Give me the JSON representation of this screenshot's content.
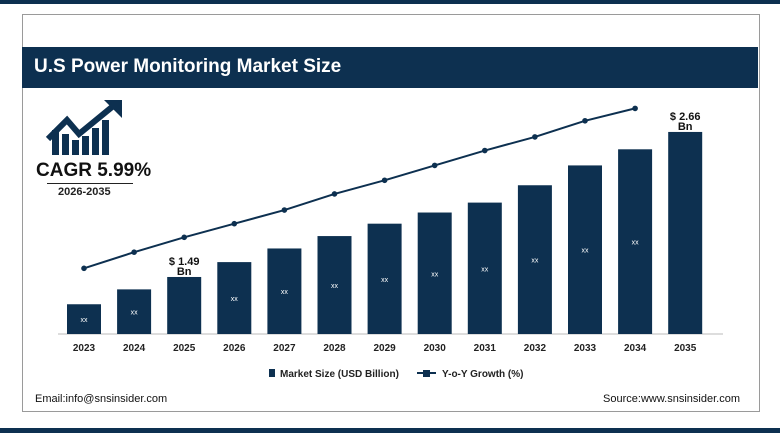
{
  "title": "U.S Power Monitoring Market Size",
  "cagr": {
    "label": "CAGR 5.99%",
    "period": "2026-2035",
    "icon": "growth-chart-arrow-icon"
  },
  "footer": {
    "email": "Email:info@snsinsider.com",
    "source": "Source:www.snsinsider.com"
  },
  "colors": {
    "primary": "#0d3050",
    "bar_label": "#ffffff"
  },
  "chart_data": {
    "type": "bar",
    "categories": [
      "2023",
      "2024",
      "2025",
      "2026",
      "2027",
      "2028",
      "2029",
      "2030",
      "2031",
      "2032",
      "2033",
      "2034",
      "2035"
    ],
    "series": [
      {
        "name": "Market Size (USD Billion)",
        "type": "bar",
        "values": [
          1.27,
          1.39,
          1.49,
          1.61,
          1.72,
          1.82,
          1.92,
          2.01,
          2.09,
          2.23,
          2.39,
          2.52,
          2.66
        ],
        "bar_labels": [
          "xx",
          "xx",
          "",
          "xx",
          "xx",
          "xx",
          "xx",
          "xx",
          "xx",
          "xx",
          "xx",
          "xx",
          ""
        ]
      },
      {
        "name": "Y-o-Y Growth (%)",
        "type": "line",
        "values": [
          1.56,
          1.69,
          1.81,
          1.92,
          2.03,
          2.16,
          2.27,
          2.39,
          2.51,
          2.62,
          2.75,
          2.85,
          null
        ]
      }
    ],
    "annotations": [
      {
        "category": "2025",
        "label": "$ 1.49",
        "unit": "Bn"
      },
      {
        "category": "2035",
        "label": "$ 2.66",
        "unit": "Bn"
      }
    ],
    "xlabel": "",
    "ylabel": "",
    "ylim": [
      1.03,
      2.95
    ],
    "grid": false,
    "legend": "bottom"
  }
}
